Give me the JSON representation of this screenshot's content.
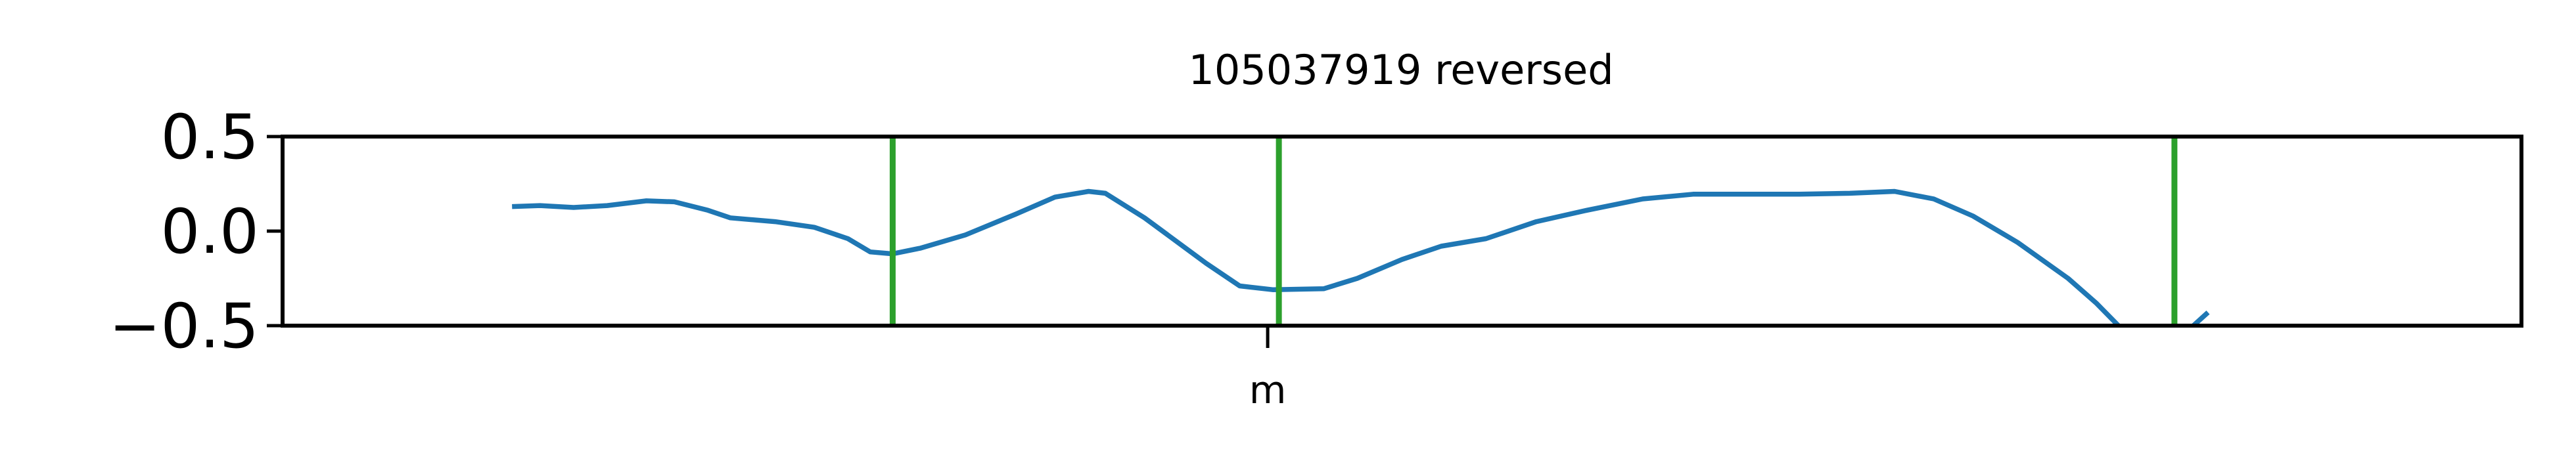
{
  "chart_data": {
    "type": "line",
    "title": "105037919 reversed",
    "xlabel": "",
    "ylabel": "",
    "xlim": [
      -1.0,
      1.0
    ],
    "ylim": [
      -0.5,
      0.5
    ],
    "x_ticks": [
      {
        "value": -0.12,
        "label": "m"
      }
    ],
    "y_ticks": [
      {
        "value": 0.5,
        "label": "0.5"
      },
      {
        "value": 0.0,
        "label": "0.0"
      },
      {
        "value": -0.5,
        "label": "−0.5"
      }
    ],
    "grid": false,
    "legend": "none",
    "series": [
      {
        "color": "#1f77b4",
        "segments": [
          [
            [
              -0.795,
              0.13
            ],
            [
              -0.77,
              0.135
            ],
            [
              -0.74,
              0.125
            ],
            [
              -0.71,
              0.135
            ],
            [
              -0.675,
              0.16
            ],
            [
              -0.65,
              0.155
            ],
            [
              -0.62,
              0.11
            ],
            [
              -0.6,
              0.07
            ],
            [
              -0.56,
              0.05
            ],
            [
              -0.525,
              0.02
            ],
            [
              -0.495,
              -0.04
            ],
            [
              -0.475,
              -0.11
            ],
            [
              -0.455,
              -0.12
            ],
            [
              -0.43,
              -0.09
            ],
            [
              -0.39,
              -0.02
            ],
            [
              -0.345,
              0.09
            ],
            [
              -0.31,
              0.18
            ],
            [
              -0.28,
              0.21
            ],
            [
              -0.265,
              0.2
            ],
            [
              -0.23,
              0.07
            ],
            [
              -0.175,
              -0.17
            ],
            [
              -0.145,
              -0.29
            ],
            [
              -0.115,
              -0.31
            ],
            [
              -0.07,
              -0.305
            ],
            [
              -0.04,
              -0.25
            ],
            [
              0.0,
              -0.15
            ],
            [
              0.035,
              -0.08
            ],
            [
              0.075,
              -0.04
            ],
            [
              0.12,
              0.05
            ],
            [
              0.165,
              0.11
            ],
            [
              0.215,
              0.17
            ],
            [
              0.26,
              0.195
            ],
            [
              0.31,
              0.195
            ],
            [
              0.355,
              0.195
            ],
            [
              0.4,
              0.2
            ],
            [
              0.44,
              0.21
            ],
            [
              0.475,
              0.17
            ],
            [
              0.51,
              0.08
            ],
            [
              0.55,
              -0.06
            ],
            [
              0.595,
              -0.25
            ],
            [
              0.62,
              -0.38
            ],
            [
              0.64,
              -0.5
            ]
          ],
          [
            [
              0.705,
              -0.51
            ],
            [
              0.72,
              -0.43
            ]
          ]
        ]
      },
      {
        "color": "#2ca02c",
        "type": "vline",
        "x": [
          -0.455,
          -0.11,
          0.69
        ]
      }
    ]
  }
}
